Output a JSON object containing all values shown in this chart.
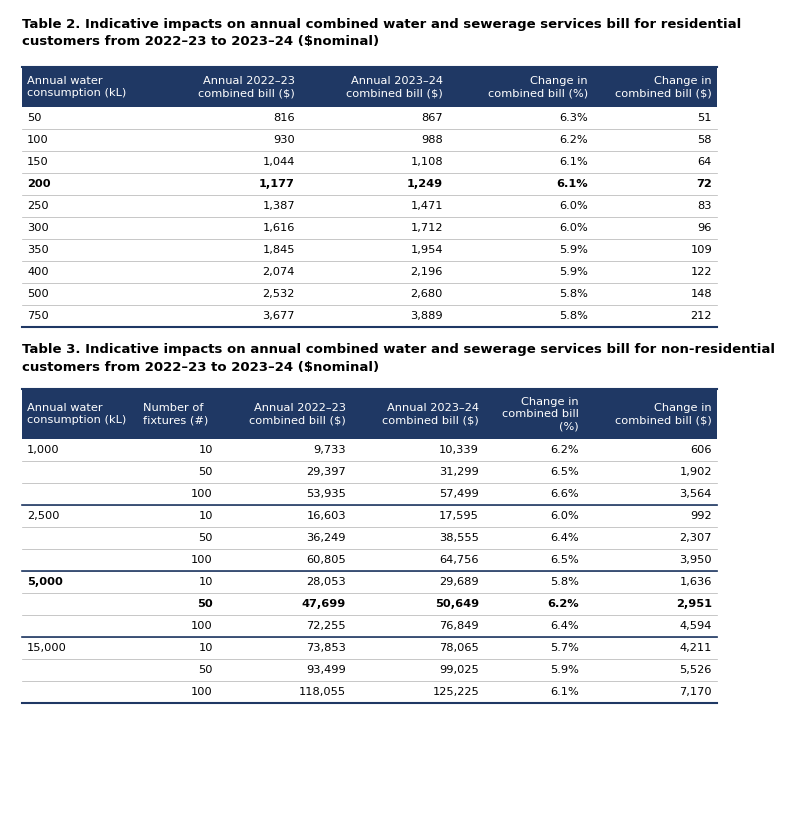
{
  "title2": "Table 2. Indicative impacts on annual combined water and sewerage services bill for residential\ncustomers from 2022–23 to 2023–24 ($nominal)",
  "title3": "Table 3. Indicative impacts on annual combined water and sewerage services bill for non-residential\ncustomers from 2022–23 to 2023–24 ($nominal)",
  "header_color": "#1f3864",
  "header_text_color": "#ffffff",
  "header_font_size": 8.2,
  "body_font_size": 8.2,
  "title_font_size": 9.5,
  "bg_color": "#ffffff",
  "table2_headers": [
    "Annual water\nconsumption (kL)",
    "Annual 2022–23\ncombined bill ($)",
    "Annual 2023–24\ncombined bill ($)",
    "Change in\ncombined bill (%)",
    "Change in\ncombined bill ($)"
  ],
  "table2_rows": [
    [
      "50",
      "816",
      "867",
      "6.3%",
      "51",
      false
    ],
    [
      "100",
      "930",
      "988",
      "6.2%",
      "58",
      false
    ],
    [
      "150",
      "1,044",
      "1,108",
      "6.1%",
      "64",
      false
    ],
    [
      "200",
      "1,177",
      "1,249",
      "6.1%",
      "72",
      true
    ],
    [
      "250",
      "1,387",
      "1,471",
      "6.0%",
      "83",
      false
    ],
    [
      "300",
      "1,616",
      "1,712",
      "6.0%",
      "96",
      false
    ],
    [
      "350",
      "1,845",
      "1,954",
      "5.9%",
      "109",
      false
    ],
    [
      "400",
      "2,074",
      "2,196",
      "5.9%",
      "122",
      false
    ],
    [
      "500",
      "2,532",
      "2,680",
      "5.8%",
      "148",
      false
    ],
    [
      "750",
      "3,677",
      "3,889",
      "5.8%",
      "212",
      false
    ]
  ],
  "table3_headers": [
    "Annual water\nconsumption (kL)",
    "Number of\nfixtures (#)",
    "Annual 2022–23\ncombined bill ($)",
    "Annual 2023–24\ncombined bill ($)",
    "Change in\ncombined bill\n(%)",
    "Change in\ncombined bill ($)"
  ],
  "table3_groups": [
    {
      "label": "1,000",
      "bold": false,
      "rows": [
        [
          "10",
          "9,733",
          "10,339",
          "6.2%",
          "606",
          false
        ],
        [
          "50",
          "29,397",
          "31,299",
          "6.5%",
          "1,902",
          false
        ],
        [
          "100",
          "53,935",
          "57,499",
          "6.6%",
          "3,564",
          false
        ]
      ]
    },
    {
      "label": "2,500",
      "bold": false,
      "rows": [
        [
          "10",
          "16,603",
          "17,595",
          "6.0%",
          "992",
          false
        ],
        [
          "50",
          "36,249",
          "38,555",
          "6.4%",
          "2,307",
          false
        ],
        [
          "100",
          "60,805",
          "64,756",
          "6.5%",
          "3,950",
          false
        ]
      ]
    },
    {
      "label": "5,000",
      "bold": true,
      "rows": [
        [
          "10",
          "28,053",
          "29,689",
          "5.8%",
          "1,636",
          false
        ],
        [
          "50",
          "47,699",
          "50,649",
          "6.2%",
          "2,951",
          true
        ],
        [
          "100",
          "72,255",
          "76,849",
          "6.4%",
          "4,594",
          false
        ]
      ]
    },
    {
      "label": "15,000",
      "bold": false,
      "rows": [
        [
          "10",
          "73,853",
          "78,065",
          "5.7%",
          "4,211",
          false
        ],
        [
          "50",
          "93,499",
          "99,025",
          "5.9%",
          "5,526",
          false
        ],
        [
          "100",
          "118,055",
          "125,225",
          "6.1%",
          "7,170",
          false
        ]
      ]
    }
  ]
}
